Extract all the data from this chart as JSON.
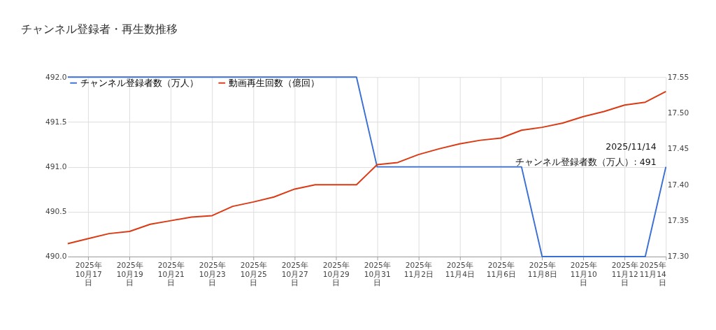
{
  "chart_data": {
    "type": "line",
    "title": "チャンネル登録者・再生数推移",
    "x": [
      "2025-10-16",
      "2025-10-17",
      "2025-10-18",
      "2025-10-19",
      "2025-10-20",
      "2025-10-21",
      "2025-10-22",
      "2025-10-23",
      "2025-10-24",
      "2025-10-25",
      "2025-10-26",
      "2025-10-27",
      "2025-10-28",
      "2025-10-29",
      "2025-10-30",
      "2025-10-31",
      "2025-11-01",
      "2025-11-02",
      "2025-11-03",
      "2025-11-04",
      "2025-11-05",
      "2025-11-06",
      "2025-11-07",
      "2025-11-08",
      "2025-11-09",
      "2025-11-10",
      "2025-11-11",
      "2025-11-12",
      "2025-11-13",
      "2025-11-14"
    ],
    "series": [
      {
        "name": "チャンネル登録者数（万人）",
        "color": "#3a6fd4",
        "values": [
          492,
          492,
          492,
          492,
          492,
          492,
          492,
          492,
          492,
          492,
          492,
          492,
          492,
          492,
          492,
          491,
          491,
          491,
          491,
          491,
          491,
          491,
          491,
          490,
          490,
          490,
          490,
          490,
          490,
          491
        ]
      },
      {
        "name": "動画再生回数（億回）",
        "color": "#dc3912",
        "axis": "y2",
        "values": [
          17.318,
          17.325,
          17.332,
          17.335,
          17.345,
          17.35,
          17.355,
          17.357,
          17.37,
          17.376,
          17.383,
          17.394,
          17.4,
          17.4,
          17.4,
          17.428,
          17.431,
          17.442,
          17.45,
          17.457,
          17.462,
          17.465,
          17.476,
          17.48,
          17.486,
          17.495,
          17.502,
          17.511,
          17.515,
          17.53
        ]
      }
    ],
    "xlim": [
      "2025-10-16",
      "2025-11-14"
    ],
    "xticks": [
      {
        "value": "2025-10-17",
        "label": "2025年\n10月17\n日"
      },
      {
        "value": "2025-10-19",
        "label": "2025年\n10月19\n日"
      },
      {
        "value": "2025-10-21",
        "label": "2025年\n10月21\n日"
      },
      {
        "value": "2025-10-23",
        "label": "2025年\n10月23\n日"
      },
      {
        "value": "2025-10-25",
        "label": "2025年\n10月25\n日"
      },
      {
        "value": "2025-10-27",
        "label": "2025年\n10月27\n日"
      },
      {
        "value": "2025-10-29",
        "label": "2025年\n10月29\n日"
      },
      {
        "value": "2025-10-31",
        "label": "2025年\n10月31\n日"
      },
      {
        "value": "2025-11-02",
        "label": "2025年\n11月2日"
      },
      {
        "value": "2025-11-04",
        "label": "2025年\n11月4日"
      },
      {
        "value": "2025-11-06",
        "label": "2025年\n11月6日"
      },
      {
        "value": "2025-11-08",
        "label": "2025年\n11月8日"
      },
      {
        "value": "2025-11-10",
        "label": "2025年\n11月10\n日"
      },
      {
        "value": "2025-11-12",
        "label": "2025年\n11月12\n日"
      },
      {
        "value": "2025-11-14",
        "label": "2025年\n11月14\n日"
      }
    ],
    "ylim": [
      490,
      492
    ],
    "yticks": [
      {
        "value": 490,
        "label": "490.0"
      },
      {
        "value": 490.5,
        "label": "490.5"
      },
      {
        "value": 491,
        "label": "491.0"
      },
      {
        "value": 491.5,
        "label": "491.5"
      },
      {
        "value": 492,
        "label": "492.0"
      }
    ],
    "y2lim": [
      17.3,
      17.55
    ],
    "y2ticks": [
      {
        "value": 17.3,
        "label": "17.30"
      },
      {
        "value": 17.35,
        "label": "17.35"
      },
      {
        "value": 17.4,
        "label": "17.40"
      },
      {
        "value": 17.45,
        "label": "17.45"
      },
      {
        "value": 17.5,
        "label": "17.50"
      },
      {
        "value": 17.55,
        "label": "17.55"
      }
    ],
    "annotations": [
      {
        "text": "2025/11/14\nチャンネル登録者数（万人）: 491",
        "x": "2025-11-14",
        "y": 491
      }
    ],
    "grid": true,
    "legend": "top left",
    "marker": "none",
    "line_style": "solid"
  }
}
